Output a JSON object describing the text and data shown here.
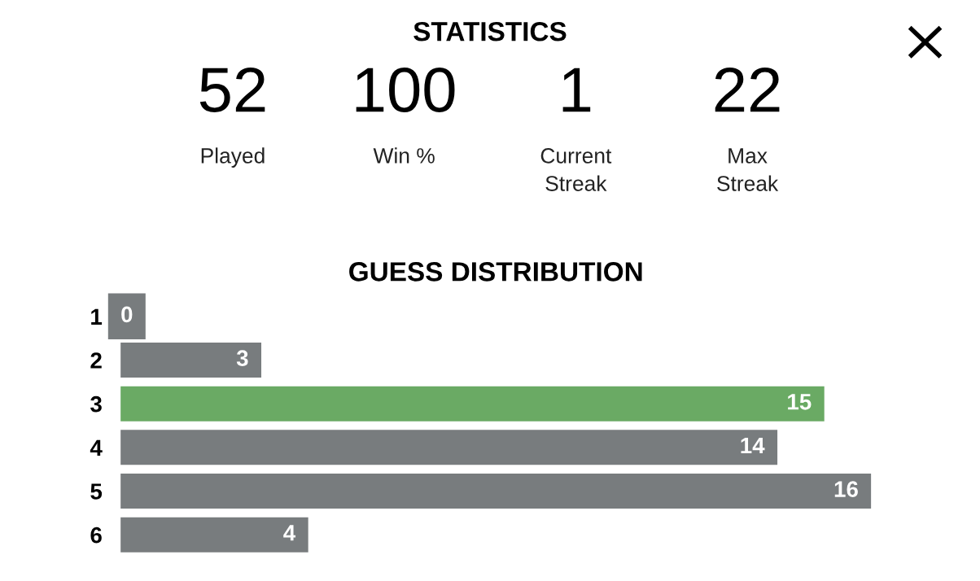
{
  "chart_data": [
    {
      "type": "other",
      "title": "STATISTICS",
      "categories": [
        "Played",
        "Win %",
        "Current\nStreak",
        "Max\nStreak"
      ],
      "value_labels": [
        "52",
        "100",
        "1",
        "22"
      ]
    },
    {
      "type": "bar",
      "orientation": "horizontal",
      "title": "GUESS DISTRIBUTION",
      "categories": [
        "1",
        "2",
        "3",
        "4",
        "5",
        "6"
      ],
      "values": [
        0,
        3,
        15,
        14,
        16,
        4
      ],
      "colors": [
        "#787c7e",
        "#787c7e",
        "#6aaa64",
        "#787c7e",
        "#787c7e",
        "#787c7e"
      ],
      "data_labels": true,
      "grid": false,
      "legend": false
    }
  ]
}
